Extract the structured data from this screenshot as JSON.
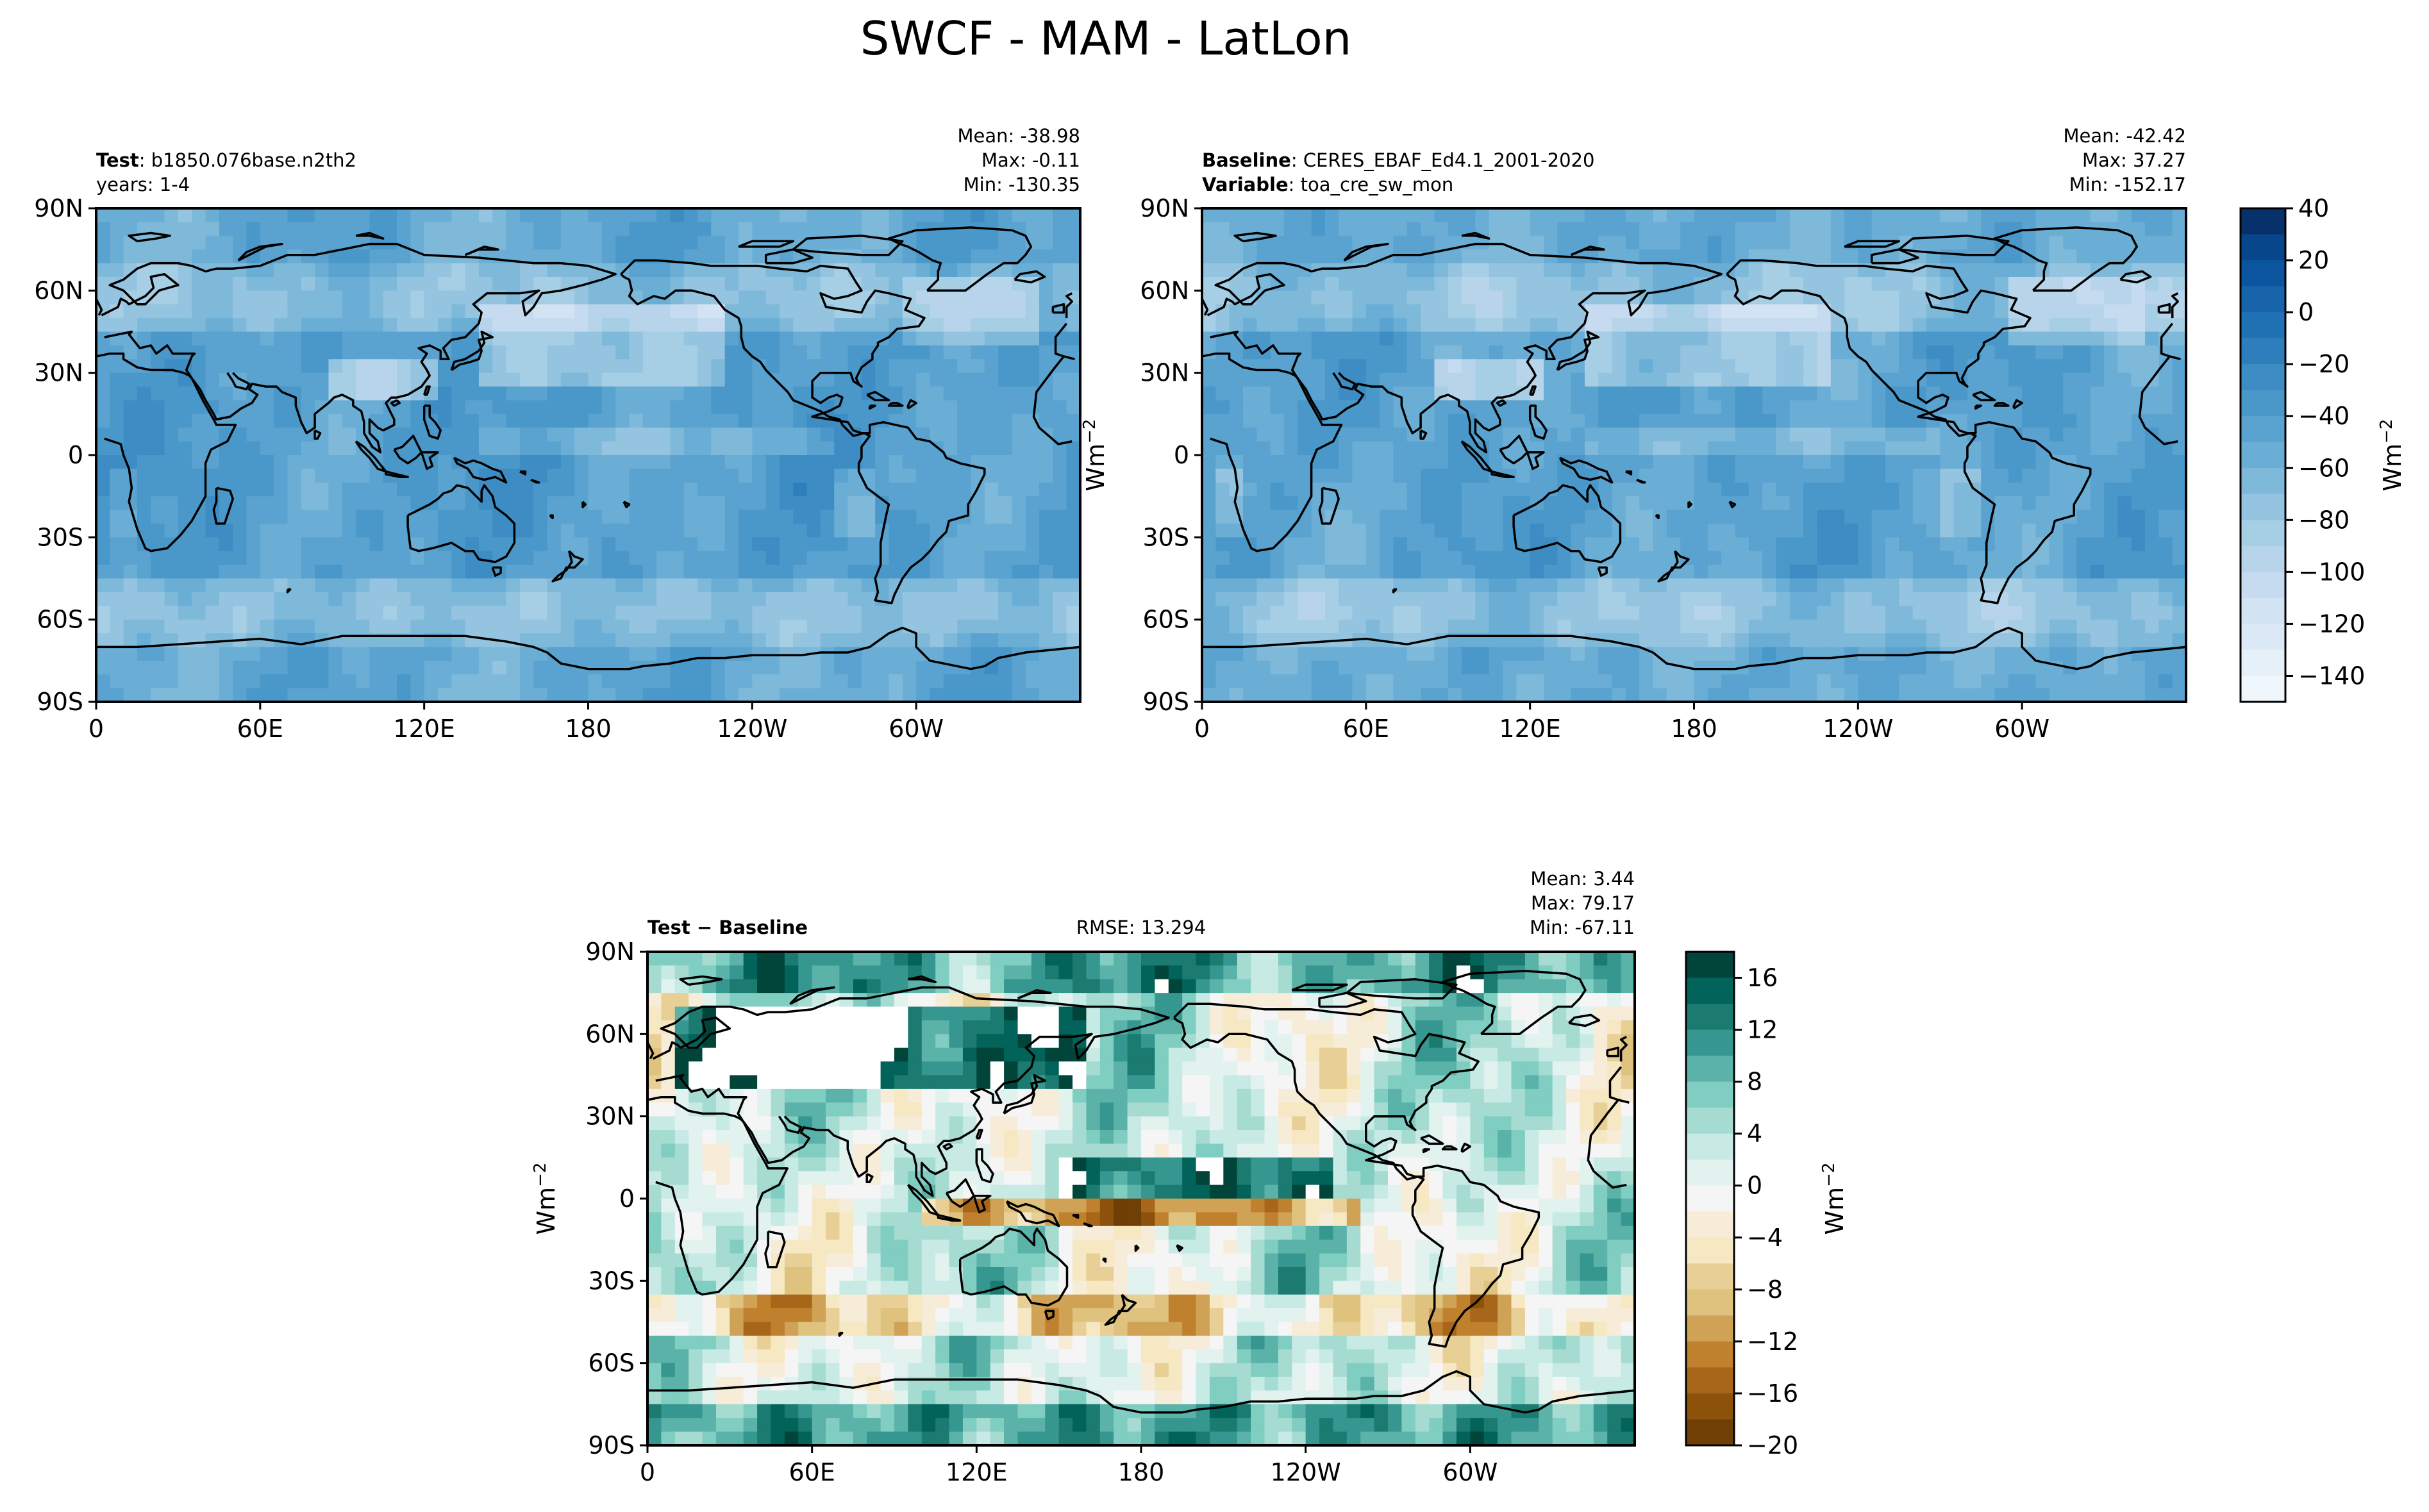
{
  "figure": {
    "title": "SWCF - MAM - LatLon"
  },
  "chart_data": [
    {
      "type": "heatmap",
      "name": "test",
      "label_key": "Test",
      "label_value": "b1850.076base.n2th2",
      "line2": "years: 1-4",
      "stats": {
        "mean": "Mean: -38.98",
        "max": "Max: -0.11",
        "min": "Min: -130.35"
      },
      "xticks": [
        "0",
        "60E",
        "120E",
        "180",
        "120W",
        "60W"
      ],
      "yticks": [
        "90N",
        "60N",
        "30N",
        "0",
        "30S",
        "60S",
        "90S"
      ],
      "xlim": [
        0,
        360
      ],
      "ylim": [
        -90,
        90
      ],
      "ylabel": "Wm",
      "ylabel_sup": "−2",
      "colormap": "Blues_r",
      "value_range": [
        -150,
        40
      ]
    },
    {
      "type": "heatmap",
      "name": "baseline",
      "label_key": "Baseline",
      "label_value": "CERES_EBAF_Ed4.1_2001-2020",
      "label2_key": "Variable",
      "label2_value": "toa_cre_sw_mon",
      "stats": {
        "mean": "Mean: -42.42",
        "max": "Max: 37.27",
        "min": "Min: -152.17"
      },
      "xticks": [
        "0",
        "60E",
        "120E",
        "180",
        "120W",
        "60W"
      ],
      "yticks": [
        "90N",
        "60N",
        "30N",
        "0",
        "30S",
        "60S",
        "90S"
      ],
      "xlim": [
        0,
        360
      ],
      "ylim": [
        -90,
        90
      ],
      "colormap": "Blues_r",
      "value_range": [
        -150,
        40
      ],
      "colorbar": {
        "ticks": [
          "40",
          "20",
          "0",
          "−20",
          "−40",
          "−60",
          "−80",
          "−100",
          "−120",
          "−140"
        ],
        "levels": [
          40,
          30,
          20,
          10,
          0,
          -10,
          -20,
          -30,
          -40,
          -50,
          -60,
          -70,
          -80,
          -90,
          -100,
          -110,
          -120,
          -130,
          -140,
          -150
        ],
        "label": "Wm",
        "label_sup": "−2"
      }
    },
    {
      "type": "heatmap",
      "name": "difference",
      "label": "Test − Baseline",
      "rmse": "RMSE: 13.294",
      "stats": {
        "mean": "Mean:  3.44",
        "max": "Max: 79.17",
        "min": "Min: -67.11"
      },
      "xticks": [
        "0",
        "60E",
        "120E",
        "180",
        "120W",
        "60W"
      ],
      "yticks": [
        "90N",
        "60N",
        "30N",
        "0",
        "30S",
        "60S",
        "90S"
      ],
      "xlim": [
        0,
        360
      ],
      "ylim": [
        -90,
        90
      ],
      "ylabel": "Wm",
      "ylabel_sup": "−2",
      "colormap": "BrBG",
      "value_range": [
        -20,
        18
      ],
      "colorbar": {
        "ticks": [
          "16",
          "12",
          "8",
          "4",
          "0",
          "−4",
          "−8",
          "−12",
          "−16",
          "−20"
        ],
        "levels": [
          18,
          16,
          14,
          12,
          10,
          8,
          6,
          4,
          2,
          0,
          -2,
          -4,
          -6,
          -8,
          -10,
          -12,
          -14,
          -16,
          -18,
          -20
        ],
        "label": "Wm",
        "label_sup": "−2"
      }
    }
  ],
  "colors": {
    "blues": [
      "#08306b",
      "#08468b",
      "#0b559f",
      "#1764ab",
      "#2171b5",
      "#2f7ebc",
      "#3d8dc4",
      "#4a98c9",
      "#5aa2cf",
      "#6aaed6",
      "#7fb9da",
      "#94c4df",
      "#a6cee4",
      "#b7d4ea",
      "#c6dbef",
      "#d2e3f3",
      "#dbe9f6",
      "#e6f0f9",
      "#eff6fc",
      "#f7fbff"
    ],
    "brbg": [
      "#00443a",
      "#016359",
      "#1b7b71",
      "#35978f",
      "#5ab2a8",
      "#80cdc1",
      "#a6dbd2",
      "#c7eae5",
      "#e1f2ef",
      "#f5f5f5",
      "#f6ecd8",
      "#f6e8c3",
      "#e8cf96",
      "#dfc27d",
      "#cfa255",
      "#bf812d",
      "#a7661a",
      "#8c510a",
      "#6f3f06",
      "#543005"
    ]
  }
}
